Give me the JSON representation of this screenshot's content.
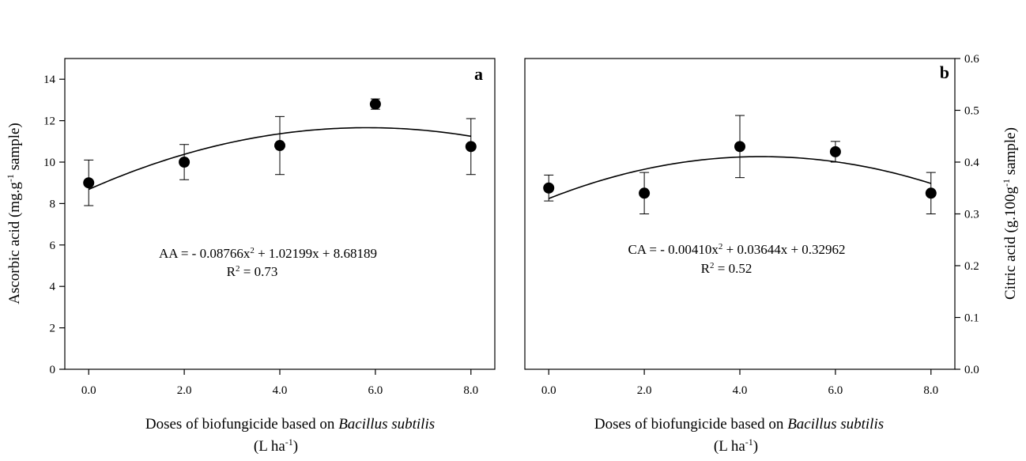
{
  "chart_data": [
    {
      "type": "scatter",
      "panel": "a",
      "x": [
        0.0,
        2.0,
        4.0,
        6.0,
        8.0
      ],
      "y": [
        9.0,
        10.0,
        10.8,
        12.8,
        10.75
      ],
      "err": [
        1.1,
        0.85,
        1.4,
        0.25,
        1.35
      ],
      "xlim": [
        -0.5,
        8.5
      ],
      "ylim": [
        0,
        15
      ],
      "xticks": [
        0,
        2,
        4,
        6,
        8
      ],
      "xtick_labels": [
        "0.0",
        "2.0",
        "4.0",
        "6.0",
        "8.0"
      ],
      "yticks": [
        0,
        2,
        4,
        6,
        8,
        10,
        12,
        14
      ],
      "ytick_labels": [
        "0",
        "2",
        "4",
        "6",
        "8",
        "10",
        "12",
        "14"
      ],
      "y_axis_side": "left",
      "fit": {
        "a": -0.08766,
        "b": 1.02199,
        "c": 8.68189
      },
      "equation_parts": [
        "AA = - 0.08766x",
        "2",
        " + 1.02199x + 8.68189"
      ],
      "r2_parts": [
        "R",
        "2",
        " = 0.73"
      ],
      "ylabel_parts": [
        "Ascorbic acid (mg.g",
        "-1",
        " sample)"
      ],
      "xlabel_line1": [
        "Doses of biofungicide based on ",
        "Bacillus subtilis"
      ],
      "xlabel_line2": [
        "(L ha",
        "-1",
        ")"
      ]
    },
    {
      "type": "scatter",
      "panel": "b",
      "x": [
        0.0,
        2.0,
        4.0,
        6.0,
        8.0
      ],
      "y": [
        0.35,
        0.34,
        0.43,
        0.42,
        0.34
      ],
      "err": [
        0.025,
        0.04,
        0.06,
        0.02,
        0.04
      ],
      "xlim": [
        -0.5,
        8.5
      ],
      "ylim": [
        0.0,
        0.6
      ],
      "xticks": [
        0,
        2,
        4,
        6,
        8
      ],
      "xtick_labels": [
        "0.0",
        "2.0",
        "4.0",
        "6.0",
        "8.0"
      ],
      "yticks": [
        0.0,
        0.1,
        0.2,
        0.3,
        0.4,
        0.5,
        0.6
      ],
      "ytick_labels": [
        "0.0",
        "0.1",
        "0.2",
        "0.3",
        "0.4",
        "0.5",
        "0.6"
      ],
      "y_axis_side": "right",
      "fit": {
        "a": -0.0041,
        "b": 0.03644,
        "c": 0.32962
      },
      "equation_parts": [
        "CA = - 0.00410x",
        "2",
        " + 0.03644x + 0.32962"
      ],
      "r2_parts": [
        "R",
        "2",
        " = 0.52"
      ],
      "ylabel_parts": [
        "Citric acid (g.100g",
        "-1",
        " sample)"
      ],
      "xlabel_line1": [
        "Doses of biofungicide based on ",
        "Bacillus subtilis"
      ],
      "xlabel_line2": [
        "(L ha",
        "-1",
        ")"
      ]
    }
  ]
}
